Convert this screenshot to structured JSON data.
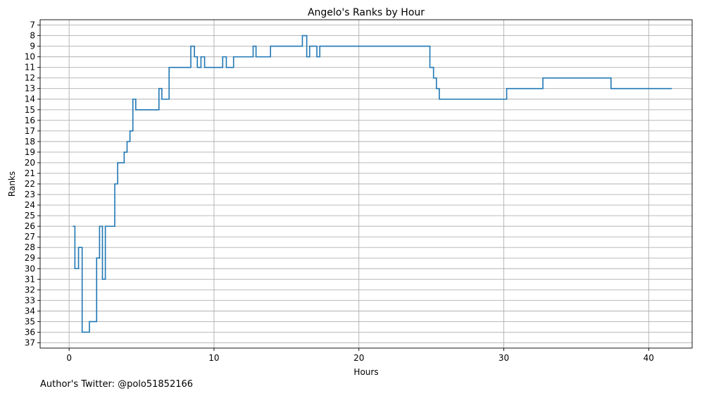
{
  "chart_data": {
    "type": "line",
    "step": true,
    "title": "Angelo's Ranks by Hour",
    "xlabel": "Hours",
    "ylabel": "Ranks",
    "xlim": [
      -2,
      43
    ],
    "ylim": [
      37.5,
      6.5
    ],
    "y_inverted": true,
    "grid": true,
    "line_color": "#1f77b4",
    "grid_color": "#b0b0b0",
    "x_ticks": [
      0,
      10,
      20,
      30,
      40
    ],
    "y_ticks": [
      7,
      8,
      9,
      10,
      11,
      12,
      13,
      14,
      15,
      16,
      17,
      18,
      19,
      20,
      21,
      22,
      23,
      24,
      25,
      26,
      27,
      28,
      29,
      30,
      31,
      32,
      33,
      34,
      35,
      36,
      37
    ],
    "series": [
      {
        "x": [
          0.25,
          0.4,
          0.65,
          0.9,
          1.4,
          1.9,
          2.1,
          2.3,
          2.5,
          2.7,
          3.15,
          3.35,
          3.8,
          4.0,
          4.2,
          4.4,
          4.6,
          4.8,
          6.2,
          6.4,
          6.9,
          8.4,
          8.65,
          8.85,
          9.1,
          9.35,
          10.6,
          10.85,
          11.35,
          12.7,
          12.9,
          13.9,
          16.1,
          16.4,
          16.6,
          17.1,
          17.3,
          24.9,
          25.15,
          25.35,
          25.55,
          25.75,
          30.2,
          32.7,
          37.4,
          41.6
        ],
        "y": [
          26,
          30,
          28,
          36,
          35,
          29,
          26,
          31,
          26,
          26,
          22,
          20,
          19,
          18,
          17,
          14,
          15,
          15,
          13,
          14,
          11,
          9,
          10,
          11,
          10,
          11,
          10,
          11,
          10,
          9,
          10,
          9,
          8,
          10,
          9,
          10,
          9,
          11,
          12,
          13,
          14,
          14,
          13,
          12,
          13,
          13
        ]
      }
    ]
  },
  "footnote": "Author's Twitter: @polo51852166"
}
